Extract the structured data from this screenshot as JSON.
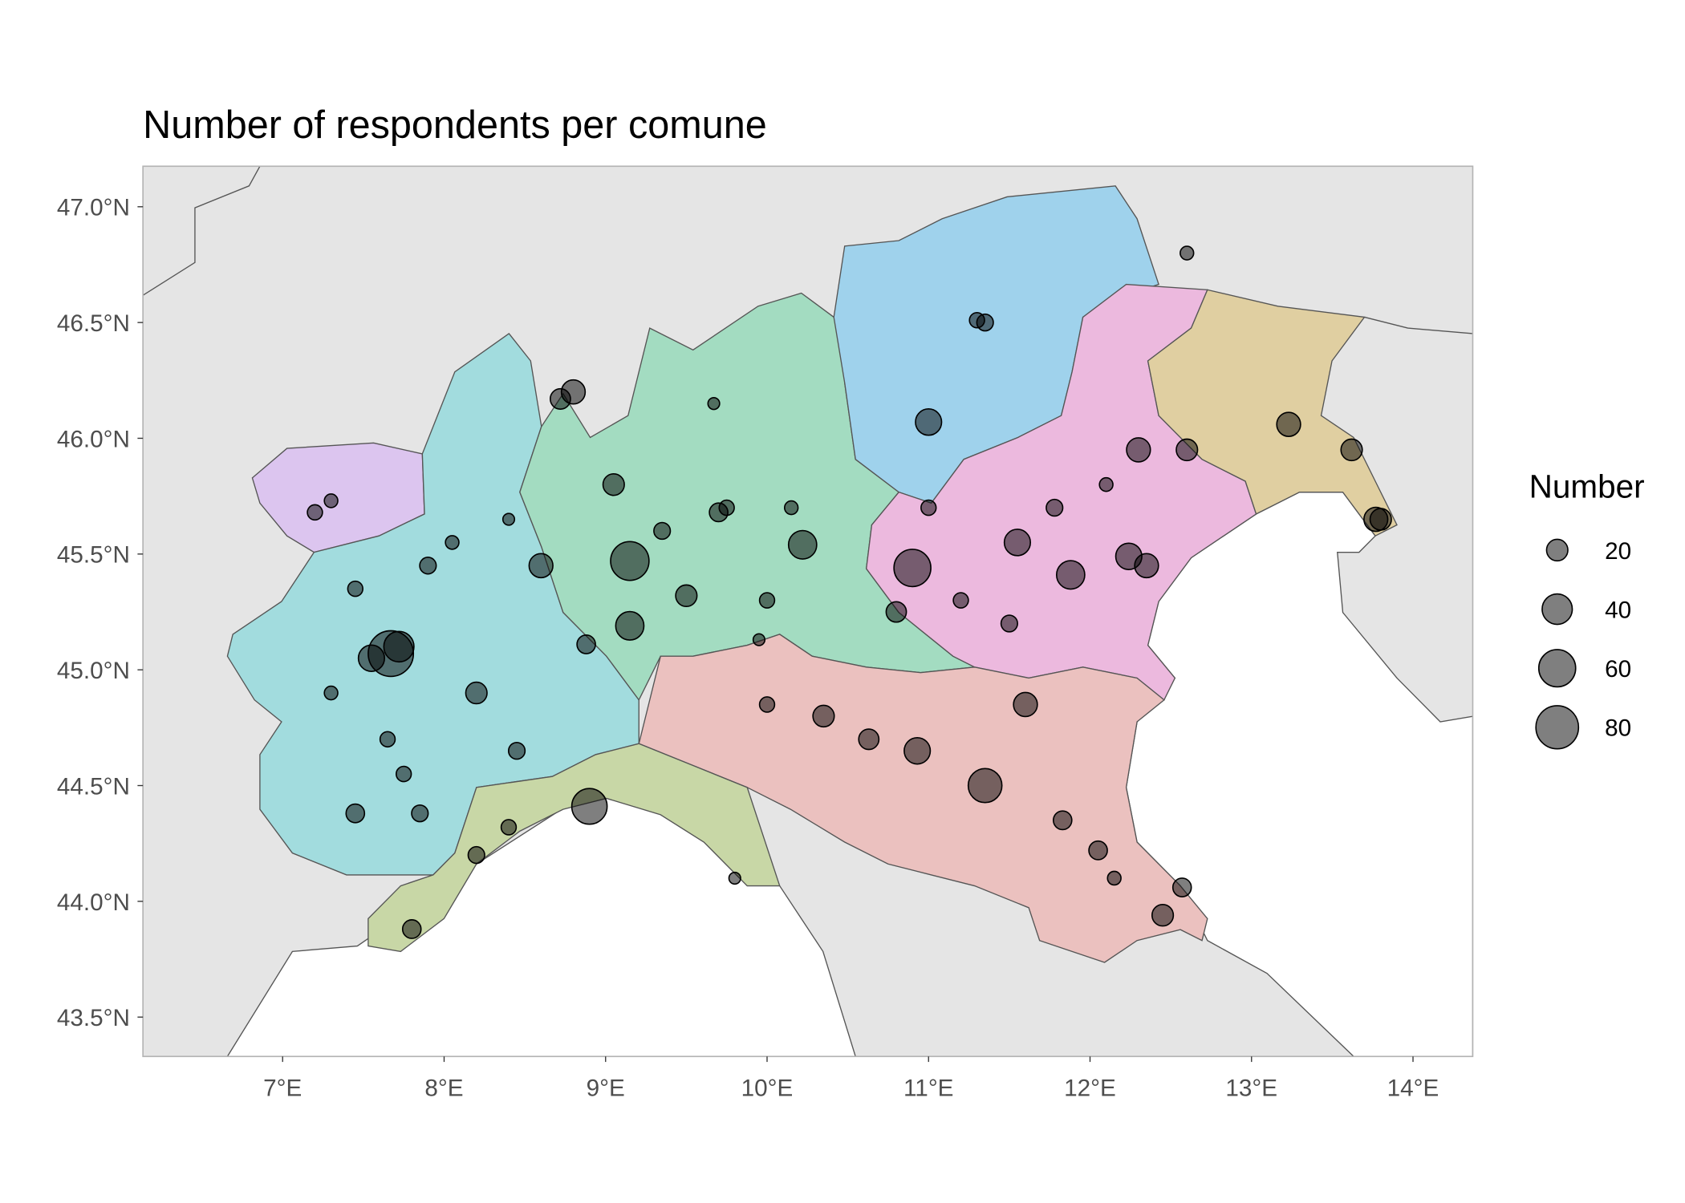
{
  "chart_data": {
    "type": "bubble-map",
    "title": "Number of respondents per comune",
    "xlim": [
      6.135,
      14.37
    ],
    "ylim": [
      43.33,
      47.175
    ],
    "xticks": [
      {
        "value": 7,
        "label": "7°E"
      },
      {
        "value": 8,
        "label": "8°E"
      },
      {
        "value": 9,
        "label": "9°E"
      },
      {
        "value": 10,
        "label": "10°E"
      },
      {
        "value": 11,
        "label": "11°E"
      },
      {
        "value": 12,
        "label": "12°E"
      },
      {
        "value": 13,
        "label": "13°E"
      },
      {
        "value": 14,
        "label": "14°E"
      }
    ],
    "yticks": [
      {
        "value": 43.5,
        "label": "43.5°N"
      },
      {
        "value": 44,
        "label": "44.0°N"
      },
      {
        "value": 44.5,
        "label": "44.5°N"
      },
      {
        "value": 45,
        "label": "45.0°N"
      },
      {
        "value": 45.5,
        "label": "45.5°N"
      },
      {
        "value": 46,
        "label": "46.0°N"
      },
      {
        "value": 46.5,
        "label": "46.5°N"
      },
      {
        "value": 47,
        "label": "47.0°N"
      }
    ],
    "grid": true,
    "point_color": "#000000",
    "x": [
      7.67,
      7.9,
      8.6,
      7.72,
      7.55,
      8.2,
      8.45,
      7.45,
      7.85,
      7.75,
      8.05,
      7.2,
      7.3,
      8.4,
      8.9,
      7.8,
      9.8,
      9.15,
      9.05,
      9.35,
      9.7,
      10.22,
      9.15,
      8.88,
      9.67,
      8.8,
      8.72,
      9.95,
      10.8,
      10.9,
      11.88,
      11.55,
      12.24,
      12.6,
      12.3,
      11.0,
      11.35,
      11.3,
      12.6,
      13.23,
      13.62,
      13.77,
      12.35,
      11.35,
      10.93,
      10.35,
      11.6,
      12.05,
      12.57,
      12.45,
      11.5,
      11.0,
      10.15,
      10.0,
      11.78,
      12.1,
      11.2,
      10.63,
      11.83,
      12.15,
      8.2,
      8.4,
      9.5,
      9.75,
      10.0,
      7.3,
      7.65,
      7.45,
      13.8
    ],
    "y": [
      45.07,
      45.45,
      45.45,
      45.1,
      45.05,
      44.9,
      44.65,
      44.38,
      44.38,
      44.55,
      45.55,
      45.68,
      45.73,
      45.65,
      44.41,
      43.88,
      44.1,
      45.47,
      45.8,
      45.6,
      45.68,
      45.54,
      45.19,
      45.11,
      46.15,
      46.2,
      46.17,
      45.13,
      45.25,
      45.44,
      45.41,
      45.55,
      45.49,
      45.95,
      45.95,
      46.07,
      46.5,
      46.51,
      46.8,
      46.06,
      45.95,
      45.65,
      45.45,
      44.5,
      44.65,
      44.8,
      44.85,
      44.22,
      44.06,
      43.94,
      45.2,
      45.7,
      45.7,
      45.3,
      45.7,
      45.8,
      45.3,
      44.7,
      44.35,
      44.1,
      44.2,
      44.32,
      45.32,
      45.7,
      44.85,
      44.9,
      44.7,
      45.35,
      45.65
    ],
    "sizes": [
      90,
      12,
      25,
      40,
      30,
      20,
      12,
      15,
      12,
      10,
      8,
      10,
      8,
      6,
      55,
      15,
      6,
      65,
      20,
      12,
      15,
      35,
      35,
      15,
      6,
      25,
      18,
      6,
      18,
      60,
      35,
      30,
      30,
      20,
      25,
      30,
      12,
      10,
      8,
      25,
      20,
      25,
      25,
      50,
      30,
      20,
      25,
      15,
      15,
      20,
      12,
      10,
      8,
      10,
      12,
      8,
      10,
      18,
      15,
      8,
      12,
      10,
      20,
      10,
      10,
      8,
      10,
      10,
      20
    ],
    "size_legend": {
      "title": "Number",
      "values": [
        20,
        40,
        60,
        80
      ]
    }
  }
}
